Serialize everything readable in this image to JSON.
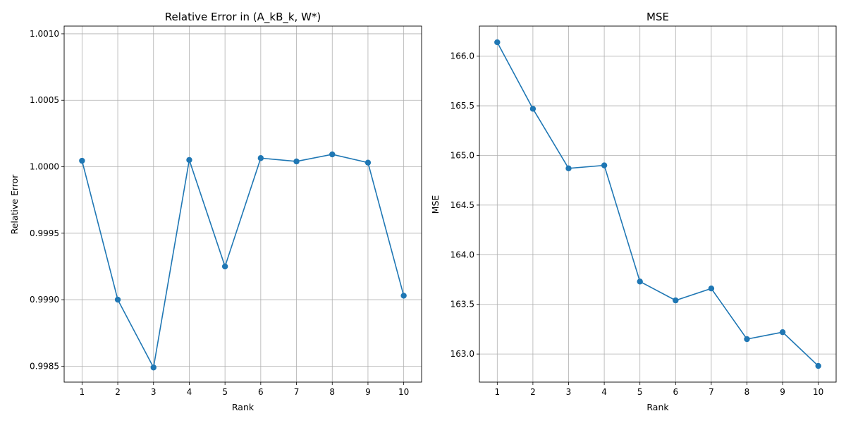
{
  "chart_data": [
    {
      "type": "line",
      "title": "Relative Error in (A_kB_k, W*)",
      "xlabel": "Rank",
      "ylabel": "Relative Error",
      "x": [
        1,
        2,
        3,
        4,
        5,
        6,
        7,
        8,
        9,
        10
      ],
      "series": [
        {
          "values": [
            1.000045,
            0.999,
            0.99849,
            1.000051,
            0.99925,
            1.000065,
            1.00004,
            1.000093,
            1.000031,
            0.99903
          ]
        }
      ],
      "yticks": [
        "0.9985",
        "0.9990",
        "0.9995",
        "1.0000",
        "1.0005",
        "1.0010"
      ],
      "ytick_values": [
        0.9985,
        0.999,
        0.9995,
        1.0,
        1.0005,
        1.001
      ],
      "ylim": [
        0.99838,
        1.001058
      ],
      "xlim": [
        0.5,
        10.5
      ],
      "grid": true,
      "color": "#1f77b4"
    },
    {
      "type": "line",
      "title": "MSE",
      "xlabel": "Rank",
      "ylabel": "MSE",
      "x": [
        1,
        2,
        3,
        4,
        5,
        6,
        7,
        8,
        9,
        10
      ],
      "series": [
        {
          "values": [
            166.14,
            165.47,
            164.87,
            164.9,
            163.73,
            163.54,
            163.66,
            163.15,
            163.22,
            162.88
          ]
        }
      ],
      "yticks": [
        "163.0",
        "163.5",
        "164.0",
        "164.5",
        "165.0",
        "165.5",
        "166.0"
      ],
      "ytick_values": [
        163.0,
        163.5,
        164.0,
        164.5,
        165.0,
        165.5,
        166.0
      ],
      "ylim": [
        162.717,
        166.303
      ],
      "xlim": [
        0.5,
        10.5
      ],
      "grid": true,
      "color": "#1f77b4"
    }
  ]
}
